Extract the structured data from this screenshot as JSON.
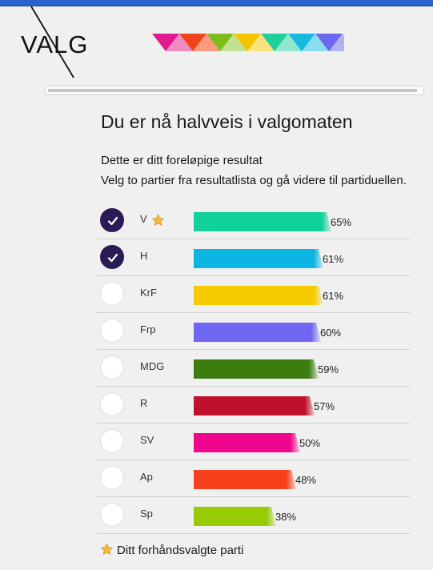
{
  "logo": {
    "text": "VALG"
  },
  "stripe_colors": [
    [
      "#e01a8c",
      "#f08cc4"
    ],
    [
      "#f0441c",
      "#f79a7e"
    ],
    [
      "#7cbf1a",
      "#c3e291"
    ],
    [
      "#f5c400",
      "#fbe27e"
    ],
    [
      "#1fcf9a",
      "#8fe7cd"
    ],
    [
      "#16b8e0",
      "#8adcf0"
    ],
    [
      "#6b67ee",
      "#b3b1f7"
    ]
  ],
  "progress": {
    "fraction": 0.5
  },
  "heading": "Du er nå halvveis i valgomaten",
  "intro": [
    "Dette er ditt foreløpige resultat",
    "Velg to partier fra resultatlista og gå videre til partiduellen."
  ],
  "parties": [
    {
      "name": "V",
      "percent": 65,
      "label": "65%",
      "selected": true,
      "preselected": true,
      "color": "#11d09a"
    },
    {
      "name": "H",
      "percent": 61,
      "label": "61%",
      "selected": true,
      "preselected": false,
      "color": "#0db5e3"
    },
    {
      "name": "KrF",
      "percent": 61,
      "label": "61%",
      "selected": false,
      "preselected": false,
      "color": "#f6cb00"
    },
    {
      "name": "Frp",
      "percent": 60,
      "label": "60%",
      "selected": false,
      "preselected": false,
      "color": "#6f67f2"
    },
    {
      "name": "MDG",
      "percent": 59,
      "label": "59%",
      "selected": false,
      "preselected": false,
      "color": "#3d7d10"
    },
    {
      "name": "R",
      "percent": 57,
      "label": "57%",
      "selected": false,
      "preselected": false,
      "color": "#c0102b"
    },
    {
      "name": "SV",
      "percent": 50,
      "label": "50%",
      "selected": false,
      "preselected": false,
      "color": "#f0058f"
    },
    {
      "name": "Ap",
      "percent": 48,
      "label": "48%",
      "selected": false,
      "preselected": false,
      "color": "#f6401c"
    },
    {
      "name": "Sp",
      "percent": 38,
      "label": "38%",
      "selected": false,
      "preselected": false,
      "color": "#96cb05"
    }
  ],
  "legend": {
    "text": "Ditt forhåndsvalgte parti",
    "icon": "star-icon"
  }
}
